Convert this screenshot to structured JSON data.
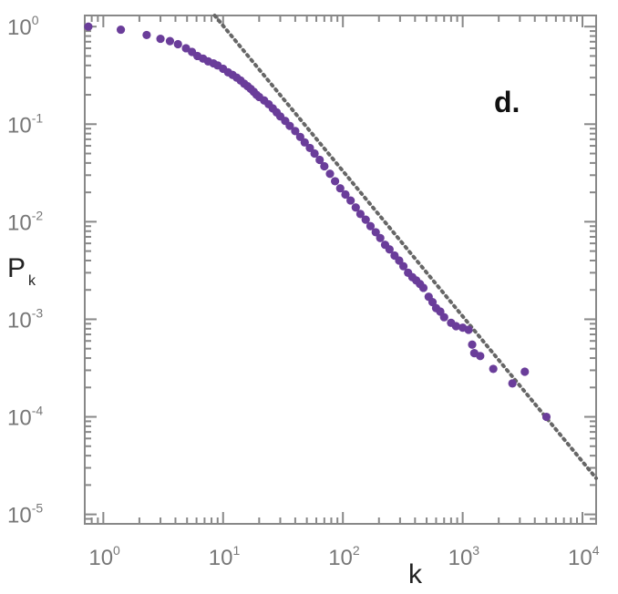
{
  "chart_data": {
    "type": "scatter",
    "panel_label": "d.",
    "xlabel": "k",
    "ylabel": "P",
    "ylabel_subscript": "k",
    "xscale": "log",
    "yscale": "log",
    "xlim": [
      0.7,
      13000
    ],
    "ylim": [
      8e-06,
      1.3
    ],
    "x_ticks": [
      {
        "value": 1,
        "base": "10",
        "exp": "0"
      },
      {
        "value": 10,
        "base": "10",
        "exp": "1"
      },
      {
        "value": 100,
        "base": "10",
        "exp": "2"
      },
      {
        "value": 1000,
        "base": "10",
        "exp": "3"
      },
      {
        "value": 10000,
        "base": "10",
        "exp": "4"
      }
    ],
    "y_ticks": [
      {
        "value": 1,
        "base": "10",
        "exp": "0"
      },
      {
        "value": 0.1,
        "base": "10",
        "exp": "-1"
      },
      {
        "value": 0.01,
        "base": "10",
        "exp": "-2"
      },
      {
        "value": 0.001,
        "base": "10",
        "exp": "-3"
      },
      {
        "value": 0.0001,
        "base": "10",
        "exp": "-4"
      },
      {
        "value": 1e-05,
        "base": "10",
        "exp": "-5"
      }
    ],
    "grid": false,
    "colors": {
      "points": "#6a3d9a",
      "fit_line": "#666666",
      "frame": "#888888"
    },
    "series": [
      {
        "points": [
          [
            0.75,
            1.0
          ],
          [
            1.4,
            0.93
          ],
          [
            2.3,
            0.82
          ],
          [
            3.0,
            0.75
          ],
          [
            3.6,
            0.71
          ],
          [
            4.2,
            0.66
          ],
          [
            4.9,
            0.6
          ],
          [
            5.5,
            0.55
          ],
          [
            6.1,
            0.5
          ],
          [
            6.8,
            0.47
          ],
          [
            7.5,
            0.44
          ],
          [
            8.3,
            0.42
          ],
          [
            9.0,
            0.4
          ],
          [
            10,
            0.37
          ],
          [
            11,
            0.34
          ],
          [
            12,
            0.32
          ],
          [
            13,
            0.3
          ],
          [
            14,
            0.28
          ],
          [
            15,
            0.26
          ],
          [
            16,
            0.245
          ],
          [
            17,
            0.23
          ],
          [
            18,
            0.215
          ],
          [
            19,
            0.2
          ],
          [
            20,
            0.19
          ],
          [
            22,
            0.175
          ],
          [
            24,
            0.16
          ],
          [
            26,
            0.145
          ],
          [
            28,
            0.132
          ],
          [
            30,
            0.12
          ],
          [
            33,
            0.108
          ],
          [
            36,
            0.096
          ],
          [
            40,
            0.085
          ],
          [
            44,
            0.074
          ],
          [
            48,
            0.065
          ],
          [
            53,
            0.057
          ],
          [
            58,
            0.05
          ],
          [
            64,
            0.043
          ],
          [
            70,
            0.037
          ],
          [
            78,
            0.031
          ],
          [
            86,
            0.026
          ],
          [
            95,
            0.022
          ],
          [
            105,
            0.019
          ],
          [
            116,
            0.0165
          ],
          [
            128,
            0.014
          ],
          [
            140,
            0.012
          ],
          [
            155,
            0.0105
          ],
          [
            170,
            0.009
          ],
          [
            188,
            0.0078
          ],
          [
            205,
            0.0068
          ],
          [
            225,
            0.0058
          ],
          [
            245,
            0.0052
          ],
          [
            270,
            0.0045
          ],
          [
            295,
            0.004
          ],
          [
            320,
            0.0035
          ],
          [
            350,
            0.003
          ],
          [
            380,
            0.0027
          ],
          [
            410,
            0.0025
          ],
          [
            440,
            0.0023
          ],
          [
            470,
            0.0021
          ],
          [
            520,
            0.0017
          ],
          [
            560,
            0.0015
          ],
          [
            600,
            0.0013
          ],
          [
            650,
            0.0012
          ],
          [
            700,
            0.00105
          ],
          [
            800,
            0.00092
          ],
          [
            880,
            0.00085
          ],
          [
            1000,
            0.00082
          ],
          [
            1120,
            0.00078
          ],
          [
            1200,
            0.00055
          ],
          [
            1250,
            0.00045
          ],
          [
            1400,
            0.00042
          ],
          [
            1800,
            0.00031
          ],
          [
            2600,
            0.00022
          ],
          [
            3300,
            0.00029
          ],
          [
            5000,
            0.0001
          ]
        ]
      }
    ],
    "fit_line": {
      "x1": 8.5,
      "y1": 1.3,
      "x2": 13000,
      "y2": 2.35e-05
    }
  }
}
